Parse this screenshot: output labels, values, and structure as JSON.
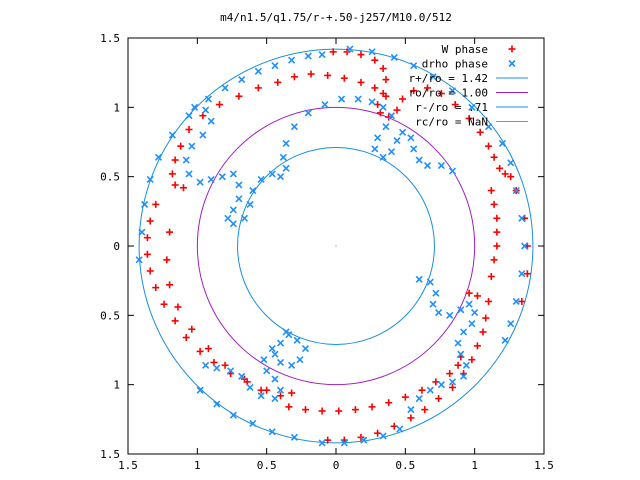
{
  "chart_data": {
    "type": "scatter",
    "title": "m4/n1.5/q1.75/r-+.50-j257/M10.0/512",
    "xlabel": "",
    "ylabel": "",
    "xlim": [
      -1.5,
      1.5
    ],
    "ylim": [
      -1.5,
      1.5
    ],
    "xticks": [
      "1.5",
      "1",
      "0.5",
      "0",
      "0.5",
      "1",
      "1.5"
    ],
    "yticks": [
      "1.5",
      "1",
      "0.5",
      "0",
      "0.5",
      "1",
      "1.5"
    ],
    "grid": false,
    "legend_position": "top-right",
    "colors": {
      "w_phase": "#ff0000",
      "drho_phase": "#1e90ff",
      "circle_outer": "#1a8fd8",
      "circle_mid": "#a020c0",
      "circle_inner": "#1a8fd8",
      "circle_rc": "#20c0d0",
      "axes": "#000000"
    },
    "series": [
      {
        "name": "W phase",
        "marker": "plus",
        "color": "#ff0000"
      },
      {
        "name": "drho phase",
        "marker": "cross",
        "color": "#1e90ff"
      },
      {
        "name": "r+/ro = 1.42",
        "kind": "circle",
        "radius": 1.42,
        "color": "#1a8fd8"
      },
      {
        "name": "ro/ro = 1.00",
        "kind": "circle",
        "radius": 1.0,
        "color": "#a020c0"
      },
      {
        "name": "r-/ro = .71",
        "kind": "circle",
        "radius": 0.71,
        "color": "#1a8fd8"
      },
      {
        "name": "rc/ro = NaN",
        "kind": "circle",
        "radius": null,
        "color": "#20c0d0"
      }
    ],
    "w_phase_points": [
      [
        -0.02,
        1.4
      ],
      [
        0.08,
        1.4
      ],
      [
        0.18,
        1.38
      ],
      [
        0.28,
        1.34
      ],
      [
        0.34,
        1.28
      ],
      [
        0.36,
        1.2
      ],
      [
        0.34,
        1.1
      ],
      [
        0.3,
        1.02
      ],
      [
        0.32,
        0.96
      ],
      [
        0.38,
        0.93
      ],
      [
        0.44,
        0.98
      ],
      [
        0.48,
        1.06
      ],
      [
        0.56,
        1.12
      ],
      [
        0.66,
        1.14
      ],
      [
        0.76,
        1.1
      ],
      [
        0.86,
        1.02
      ],
      [
        0.96,
        0.92
      ],
      [
        1.04,
        0.82
      ],
      [
        1.1,
        0.72
      ],
      [
        1.14,
        0.64
      ],
      [
        1.18,
        0.56
      ],
      [
        1.22,
        0.52
      ],
      [
        1.26,
        0.5
      ],
      [
        -0.3,
        1.22
      ],
      [
        -0.18,
        1.24
      ],
      [
        -0.06,
        1.23
      ],
      [
        0.06,
        1.21
      ],
      [
        0.18,
        1.18
      ],
      [
        0.28,
        1.14
      ],
      [
        0.36,
        1.08
      ],
      [
        -0.42,
        1.18
      ],
      [
        -0.56,
        1.14
      ],
      [
        -0.7,
        1.08
      ],
      [
        -0.84,
        1.02
      ],
      [
        -0.96,
        0.94
      ],
      [
        -1.06,
        0.84
      ],
      [
        -1.12,
        0.72
      ],
      [
        -1.16,
        0.62
      ],
      [
        -1.18,
        0.52
      ],
      [
        -1.16,
        0.44
      ],
      [
        -1.1,
        0.42
      ],
      [
        -1.3,
        0.3
      ],
      [
        -1.34,
        0.18
      ],
      [
        -1.36,
        0.06
      ],
      [
        -1.36,
        -0.06
      ],
      [
        -1.34,
        -0.18
      ],
      [
        -1.3,
        -0.3
      ],
      [
        -1.24,
        -0.42
      ],
      [
        -1.16,
        -0.54
      ],
      [
        -1.08,
        -0.66
      ],
      [
        -0.98,
        -0.76
      ],
      [
        -0.88,
        -0.84
      ],
      [
        -0.76,
        -0.92
      ],
      [
        -0.64,
        -0.98
      ],
      [
        -0.5,
        -1.04
      ],
      [
        -0.4,
        -1.08
      ],
      [
        -0.32,
        -1.06
      ],
      [
        -1.2,
        0.1
      ],
      [
        -1.22,
        -0.1
      ],
      [
        -1.2,
        -0.28
      ],
      [
        -1.14,
        -0.44
      ],
      [
        -1.04,
        -0.6
      ],
      [
        -0.92,
        -0.74
      ],
      [
        -0.8,
        -0.86
      ],
      [
        -0.66,
        -0.96
      ],
      [
        -0.54,
        -1.04
      ],
      [
        -0.34,
        -1.16
      ],
      [
        -0.22,
        -1.18
      ],
      [
        -0.1,
        -1.19
      ],
      [
        0.02,
        -1.19
      ],
      [
        0.14,
        -1.18
      ],
      [
        0.26,
        -1.16
      ],
      [
        0.38,
        -1.13
      ],
      [
        0.5,
        -1.09
      ],
      [
        0.62,
        -1.04
      ],
      [
        0.72,
        -0.98
      ],
      [
        0.82,
        -0.92
      ],
      [
        0.88,
        -0.86
      ],
      [
        0.9,
        -0.8
      ],
      [
        -0.06,
        -1.4
      ],
      [
        0.06,
        -1.4
      ],
      [
        0.18,
        -1.38
      ],
      [
        0.3,
        -1.35
      ],
      [
        0.42,
        -1.3
      ],
      [
        0.54,
        -1.24
      ],
      [
        0.64,
        -1.18
      ],
      [
        0.74,
        -1.1
      ],
      [
        0.84,
        -1.02
      ],
      [
        0.92,
        -0.92
      ],
      [
        0.98,
        -0.82
      ],
      [
        1.02,
        -0.72
      ],
      [
        1.06,
        -0.62
      ],
      [
        1.08,
        -0.52
      ],
      [
        1.1,
        -0.4
      ],
      [
        1.02,
        -0.36
      ],
      [
        0.96,
        -0.34
      ],
      [
        1.12,
        0.4
      ],
      [
        1.14,
        0.3
      ],
      [
        1.16,
        0.2
      ],
      [
        1.16,
        0.1
      ],
      [
        1.16,
        0.0
      ],
      [
        1.14,
        -0.1
      ],
      [
        1.12,
        -0.22
      ],
      [
        1.3,
        0.4
      ],
      [
        1.36,
        0.2
      ],
      [
        1.38,
        0.0
      ],
      [
        1.38,
        -0.2
      ],
      [
        1.34,
        -0.4
      ]
    ],
    "drho_phase_points": [
      [
        -1.42,
        -0.1
      ],
      [
        -1.4,
        0.1
      ],
      [
        -1.38,
        0.3
      ],
      [
        -1.34,
        0.48
      ],
      [
        -1.28,
        0.64
      ],
      [
        -1.18,
        0.8
      ],
      [
        -1.06,
        0.94
      ],
      [
        -0.92,
        1.06
      ],
      [
        -0.8,
        1.14
      ],
      [
        -0.68,
        1.2
      ],
      [
        -0.56,
        1.26
      ],
      [
        -0.44,
        1.3
      ],
      [
        -0.32,
        1.34
      ],
      [
        -0.2,
        1.37
      ],
      [
        -0.1,
        1.38
      ],
      [
        -1.02,
        1.0
      ],
      [
        -0.94,
        0.98
      ],
      [
        -0.9,
        0.9
      ],
      [
        -0.96,
        0.8
      ],
      [
        -1.04,
        0.72
      ],
      [
        -1.08,
        0.62
      ],
      [
        -1.06,
        0.52
      ],
      [
        -0.98,
        0.46
      ],
      [
        -0.9,
        0.48
      ],
      [
        -0.82,
        0.5
      ],
      [
        -0.74,
        0.52
      ],
      [
        -0.7,
        0.44
      ],
      [
        -0.7,
        0.34
      ],
      [
        -0.74,
        0.26
      ],
      [
        -0.78,
        0.2
      ],
      [
        -0.74,
        0.16
      ],
      [
        -0.66,
        0.2
      ],
      [
        -0.62,
        0.3
      ],
      [
        -0.6,
        0.4
      ],
      [
        -0.54,
        0.48
      ],
      [
        -0.46,
        0.52
      ],
      [
        -0.4,
        0.5
      ],
      [
        -0.36,
        0.56
      ],
      [
        -0.38,
        0.64
      ],
      [
        -0.36,
        0.74
      ],
      [
        -0.3,
        0.86
      ],
      [
        -0.2,
        0.96
      ],
      [
        -0.08,
        1.02
      ],
      [
        0.04,
        1.06
      ],
      [
        0.16,
        1.06
      ],
      [
        0.26,
        1.04
      ],
      [
        0.34,
        1.0
      ],
      [
        0.4,
        0.94
      ],
      [
        0.36,
        0.86
      ],
      [
        0.3,
        0.78
      ],
      [
        0.28,
        0.7
      ],
      [
        0.34,
        0.64
      ],
      [
        0.4,
        0.68
      ],
      [
        0.44,
        0.76
      ],
      [
        0.48,
        0.82
      ],
      [
        0.54,
        0.78
      ],
      [
        0.56,
        0.7
      ],
      [
        0.6,
        0.62
      ],
      [
        0.66,
        0.58
      ],
      [
        0.76,
        0.58
      ],
      [
        0.84,
        0.54
      ],
      [
        -0.36,
        -0.62
      ],
      [
        -0.4,
        -0.7
      ],
      [
        -0.44,
        -0.78
      ],
      [
        -0.4,
        -0.84
      ],
      [
        -0.32,
        -0.86
      ],
      [
        -0.26,
        -0.82
      ],
      [
        -0.22,
        -0.74
      ],
      [
        -0.28,
        -0.68
      ],
      [
        -0.34,
        -0.64
      ],
      [
        -0.46,
        -0.74
      ],
      [
        -0.52,
        -0.82
      ],
      [
        -0.5,
        -0.9
      ],
      [
        -0.44,
        -0.96
      ],
      [
        -0.4,
        -1.04
      ],
      [
        -0.44,
        -1.1
      ],
      [
        -0.54,
        -1.08
      ],
      [
        -0.62,
        -1.02
      ],
      [
        -0.68,
        -0.94
      ],
      [
        -0.76,
        -0.9
      ],
      [
        -0.86,
        -0.88
      ],
      [
        -0.94,
        -0.86
      ],
      [
        0.6,
        -0.24
      ],
      [
        0.68,
        -0.26
      ],
      [
        0.72,
        -0.34
      ],
      [
        0.7,
        -0.42
      ],
      [
        0.74,
        -0.48
      ],
      [
        0.82,
        -0.5
      ],
      [
        0.9,
        -0.46
      ],
      [
        0.96,
        -0.42
      ],
      [
        1.0,
        -0.48
      ],
      [
        0.98,
        -0.56
      ],
      [
        0.92,
        -0.62
      ],
      [
        0.88,
        -0.7
      ],
      [
        0.9,
        -0.78
      ],
      [
        0.94,
        -0.86
      ],
      [
        0.92,
        -0.94
      ],
      [
        0.84,
        -0.98
      ],
      [
        0.76,
        -1.0
      ],
      [
        0.68,
        -1.04
      ],
      [
        0.6,
        -1.1
      ],
      [
        0.54,
        -1.18
      ],
      [
        1.26,
        0.6
      ],
      [
        1.3,
        0.4
      ],
      [
        1.34,
        0.2
      ],
      [
        1.36,
        0.0
      ],
      [
        1.34,
        -0.2
      ],
      [
        1.3,
        -0.4
      ],
      [
        1.26,
        -0.56
      ],
      [
        1.22,
        -0.68
      ],
      [
        -0.1,
        -1.42
      ],
      [
        0.06,
        -1.42
      ],
      [
        0.2,
        -1.4
      ],
      [
        0.34,
        -1.37
      ],
      [
        0.46,
        -1.32
      ],
      [
        -0.3,
        -1.38
      ],
      [
        -0.46,
        -1.34
      ],
      [
        -0.6,
        -1.28
      ],
      [
        -0.74,
        -1.22
      ],
      [
        -0.86,
        -1.14
      ],
      [
        -0.98,
        -1.04
      ],
      [
        0.1,
        1.42
      ],
      [
        0.26,
        1.4
      ],
      [
        0.42,
        1.36
      ],
      [
        0.56,
        1.3
      ],
      [
        0.7,
        1.22
      ],
      [
        0.84,
        1.12
      ],
      [
        0.98,
        1.0
      ],
      [
        1.1,
        0.86
      ],
      [
        1.2,
        0.74
      ]
    ]
  }
}
